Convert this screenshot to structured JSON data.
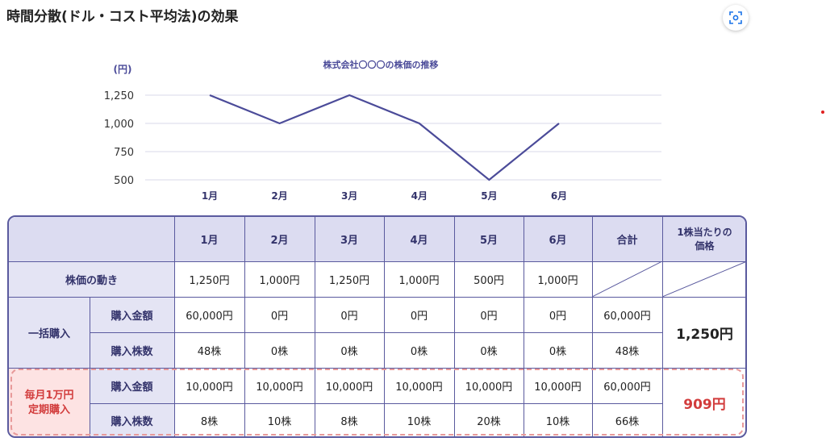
{
  "title": "時間分散(ドル・コスト平均法)の効果",
  "icons": {
    "lens": "image-search-icon"
  },
  "colors": {
    "line": "#4b4b99",
    "header_bg": "#dcdcf1",
    "highlight_red": "#d23c3c",
    "pink_bg": "#fde3e3"
  },
  "chart_data": {
    "type": "line",
    "title": "株式会社〇〇〇の株価の推移",
    "ylabel": "(円)",
    "categories": [
      "1月",
      "2月",
      "3月",
      "4月",
      "5月",
      "6月"
    ],
    "values": [
      1250,
      1000,
      1250,
      1000,
      500,
      1000
    ],
    "yticks": [
      "1,250",
      "1,000",
      "750",
      "500"
    ],
    "ytick_values": [
      1250,
      1000,
      750,
      500
    ],
    "ylim": [
      500,
      1250
    ],
    "grid": true
  },
  "table": {
    "header": {
      "months": [
        "1月",
        "2月",
        "3月",
        "4月",
        "5月",
        "6月"
      ],
      "total": "合計",
      "per_share_line1": "1株当たりの",
      "per_share_line2": "価格"
    },
    "price_row": {
      "label": "株価の動き",
      "values": [
        "1,250円",
        "1,000円",
        "1,250円",
        "1,000円",
        "500円",
        "1,000円"
      ]
    },
    "lump_sum": {
      "label": "一括購入",
      "amount_label": "購入金額",
      "amounts": [
        "60,000円",
        "0円",
        "0円",
        "0円",
        "0円",
        "0円"
      ],
      "amount_total": "60,000円",
      "shares_label": "購入株数",
      "shares": [
        "48株",
        "0株",
        "0株",
        "0株",
        "0株",
        "0株"
      ],
      "shares_total": "48株",
      "per_share": "1,250円"
    },
    "monthly": {
      "label_line1": "毎月1万円",
      "label_line2": "定期購入",
      "amount_label": "購入金額",
      "amounts": [
        "10,000円",
        "10,000円",
        "10,000円",
        "10,000円",
        "10,000円",
        "10,000円"
      ],
      "amount_total": "60,000円",
      "shares_label": "購入株数",
      "shares": [
        "8株",
        "10株",
        "8株",
        "10株",
        "20株",
        "10株"
      ],
      "shares_total": "66株",
      "per_share": "909円"
    }
  }
}
